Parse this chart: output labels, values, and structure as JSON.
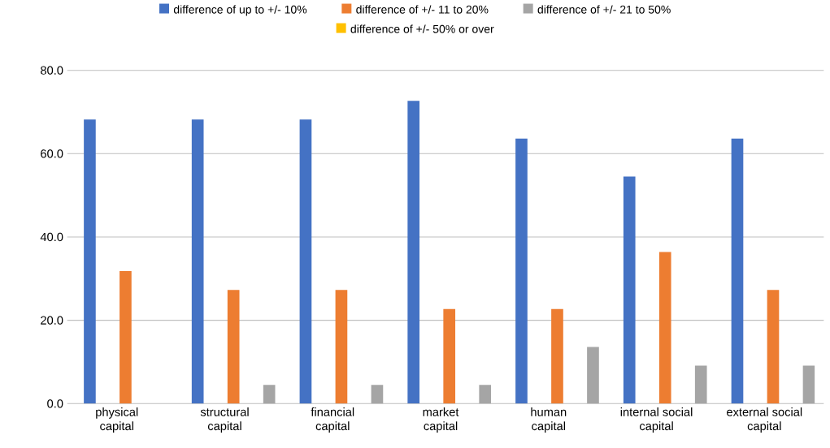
{
  "chart_data": {
    "type": "bar",
    "categories": [
      "physical capital",
      "structural capital",
      "financial capital",
      "market capital",
      "human capital",
      "internal social capital",
      "external social capital"
    ],
    "series": [
      {
        "name": "difference of up to +/- 10%",
        "color": "#4472c4",
        "values": [
          68.2,
          68.2,
          68.2,
          72.7,
          63.6,
          54.5,
          63.6
        ]
      },
      {
        "name": "difference of +/- 11 to 20%",
        "color": "#ed7d31",
        "values": [
          31.8,
          27.3,
          27.3,
          22.7,
          22.7,
          36.4,
          27.3
        ]
      },
      {
        "name": "difference of +/- 21 to 50%",
        "color": "#a5a5a5",
        "values": [
          0,
          4.5,
          4.5,
          4.5,
          13.6,
          9.1,
          9.1
        ]
      },
      {
        "name": "difference of  +/- 50% or over",
        "color": "#ffc000",
        "values": [
          0,
          0,
          0,
          0,
          0,
          0,
          0
        ]
      }
    ],
    "ylim": [
      0,
      80
    ],
    "yticks": [
      {
        "value": 0,
        "label": "0.0"
      },
      {
        "value": 20,
        "label": "20.0"
      },
      {
        "value": 40,
        "label": "40.0"
      },
      {
        "value": 60,
        "label": "60.0"
      },
      {
        "value": 80,
        "label": "80.0"
      }
    ],
    "grid": "y",
    "legend": "top"
  }
}
